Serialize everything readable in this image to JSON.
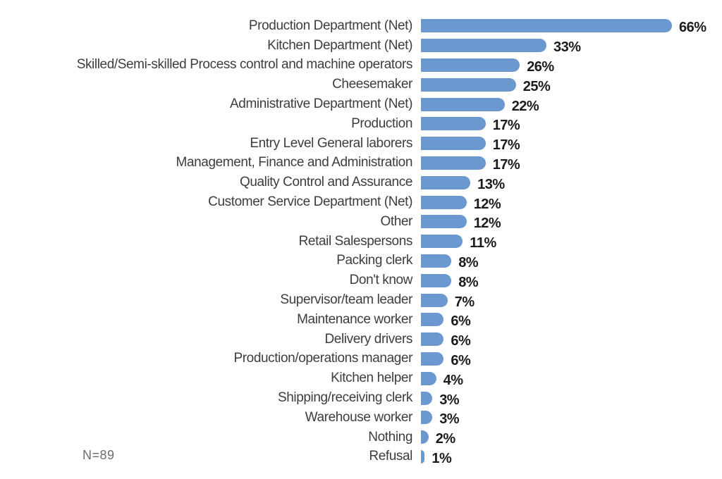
{
  "chart_data": {
    "type": "bar",
    "orientation": "horizontal",
    "title": "",
    "xlabel": "",
    "ylabel": "",
    "xlim": [
      0,
      66
    ],
    "grid": false,
    "legend": false,
    "value_suffix": "%",
    "note": "N=89",
    "categories": [
      "Production Department (Net)",
      "Kitchen Department (Net)",
      "Skilled/Semi-skilled Process control and machine operators",
      "Cheesemaker",
      "Administrative Department (Net)",
      "Production",
      "Entry Level General laborers",
      "Management, Finance and Administration",
      "Quality Control and Assurance",
      "Customer Service Department (Net)",
      "Other",
      "Retail Salespersons",
      "Packing clerk",
      "Don't know",
      "Supervisor/team leader",
      "Maintenance worker",
      "Delivery drivers",
      "Production/operations manager",
      "Kitchen helper",
      "Shipping/receiving clerk",
      "Warehouse worker",
      "Nothing",
      "Refusal"
    ],
    "values": [
      66,
      33,
      26,
      25,
      22,
      17,
      17,
      17,
      13,
      12,
      12,
      11,
      8,
      8,
      7,
      6,
      6,
      6,
      4,
      3,
      3,
      2,
      1
    ],
    "colors": {
      "bar": "#6B98CF",
      "category_label": "#3d3d3d",
      "value_label": "#1c1c1c",
      "note": "#6d6d6d"
    }
  }
}
